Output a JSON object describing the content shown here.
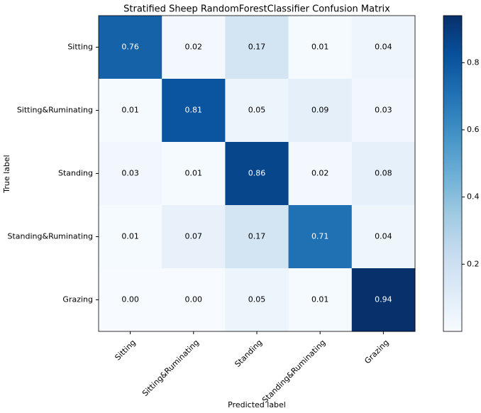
{
  "chart_data": {
    "type": "heatmap",
    "title": "Stratified Sheep RandomForestClassifier Confusion Matrix",
    "x_label": "Predicted label",
    "y_label": "True label",
    "x_categories": [
      "Sitting",
      "Sitting&Ruminating",
      "Standing",
      "Standing&Ruminating",
      "Grazing"
    ],
    "y_categories": [
      "Sitting",
      "Sitting&Ruminating",
      "Standing",
      "Standing&Ruminating",
      "Grazing"
    ],
    "values": [
      [
        0.76,
        0.02,
        0.17,
        0.01,
        0.04
      ],
      [
        0.01,
        0.81,
        0.05,
        0.09,
        0.03
      ],
      [
        0.03,
        0.01,
        0.86,
        0.02,
        0.08
      ],
      [
        0.01,
        0.07,
        0.17,
        0.71,
        0.04
      ],
      [
        0.0,
        0.0,
        0.05,
        0.01,
        0.94
      ]
    ],
    "value_labels": [
      [
        "0.76",
        "0.02",
        "0.17",
        "0.01",
        "0.04"
      ],
      [
        "0.01",
        "0.81",
        "0.05",
        "0.09",
        "0.03"
      ],
      [
        "0.03",
        "0.01",
        "0.86",
        "0.02",
        "0.08"
      ],
      [
        "0.01",
        "0.07",
        "0.17",
        "0.71",
        "0.04"
      ],
      [
        "0.00",
        "0.00",
        "0.05",
        "0.01",
        "0.94"
      ]
    ],
    "colormap": "Blues",
    "clim": [
      0,
      0.94
    ],
    "cticks": [
      0.2,
      0.4,
      0.6,
      0.8
    ]
  }
}
